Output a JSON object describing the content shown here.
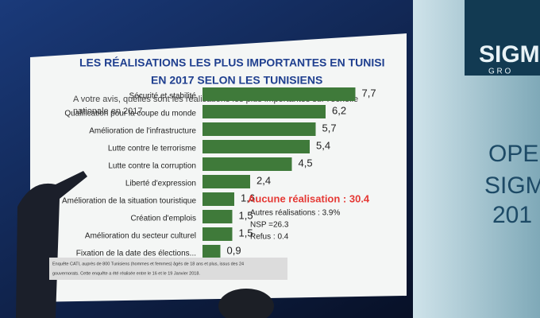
{
  "chart_data": {
    "type": "barh",
    "title": [
      "LES RÉALISATIONS LES PLUS IMPORTANTES EN TUNISI",
      "EN 2017 SELON LES TUNISIENS"
    ],
    "subtitle": [
      "A votre avis, quelles sont  les réalisations les plus importantes sur l'échelle",
      "nationale en 2017"
    ],
    "categories": [
      "Sécurité et stabilité",
      "Qualification pour la coupe du monde",
      "Amélioration de l'infrastructure",
      "Lutte contre le terrorisme",
      "Lutte contre la corruption",
      "Liberté d'expression",
      "Amélioration de la situation touristique",
      "Création d'emplois",
      "Amélioration du secteur culturel",
      "Fixation de la date des élections..."
    ],
    "values": [
      7.7,
      6.2,
      5.7,
      5.4,
      4.5,
      2.4,
      1.6,
      1.5,
      1.5,
      0.9
    ],
    "value_labels": [
      "7,7",
      "6,2",
      "5,7",
      "5,4",
      "4,5",
      "2,4",
      "1,6",
      "1,5",
      "1,5",
      "0,9"
    ],
    "color": "#3f7a3a",
    "xlim": [
      0,
      8
    ],
    "annotations": [
      "Aucune réalisation : 30.4",
      "Autres réalisations : 3.9%",
      "NSP =26.3",
      "Refus : 0.4"
    ],
    "footnote": [
      "Enquête CATI, auprès de 800 Tunisiens (hommes et femmes) âgés de 18 ans et plus, issus des 24",
      "gouvernorats. Cette enquête a été réalisée entre le 16 et le 19 Janvier 2018."
    ]
  },
  "background_text": [
    "SIGM",
    "G R O",
    "OPE",
    "SIGM",
    "201"
  ]
}
